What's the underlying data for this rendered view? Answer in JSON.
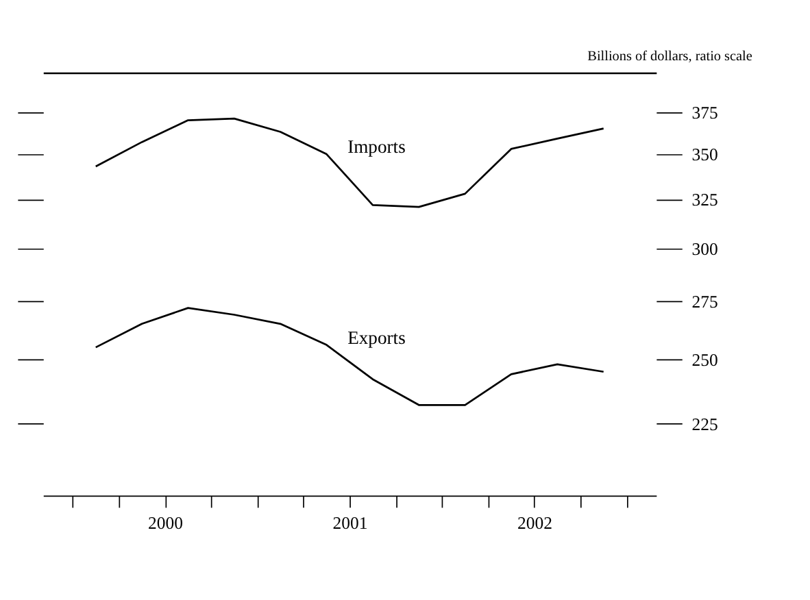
{
  "chart_data": {
    "type": "line",
    "ylabel": "Billions of dollars, ratio scale",
    "x": [
      2000.125,
      2000.375,
      2000.625,
      2000.875,
      2001.125,
      2001.375,
      2001.625,
      2001.875,
      2002.125,
      2002.375,
      2002.625,
      2002.875
    ],
    "series": [
      {
        "name": "Imports",
        "color": "#000000",
        "values": [
          343,
          357,
          370,
          371,
          363,
          350,
          322,
          321,
          328,
          353,
          359,
          365
        ]
      },
      {
        "name": "Exports",
        "color": "#000000",
        "values": [
          255,
          265,
          272,
          269,
          265,
          256,
          242,
          232,
          232,
          244,
          248,
          245
        ]
      }
    ],
    "log": true,
    "xlim": [
      1999.84,
      2003.16
    ],
    "xticks": [
      {
        "value": 2000,
        "label": null
      },
      {
        "value": 2000.25,
        "label": null
      },
      {
        "value": 2000.5,
        "label": "2000"
      },
      {
        "value": 2000.75,
        "label": null
      },
      {
        "value": 2001,
        "label": null
      },
      {
        "value": 2001.25,
        "label": null
      },
      {
        "value": 2001.5,
        "label": "2001"
      },
      {
        "value": 2001.75,
        "label": null
      },
      {
        "value": 2002,
        "label": null
      },
      {
        "value": 2002.25,
        "label": null
      },
      {
        "value": 2002.5,
        "label": "2002"
      },
      {
        "value": 2002.75,
        "label": null
      },
      {
        "value": 2003,
        "label": null
      }
    ],
    "ylim": [
      200,
      400
    ],
    "yticks": [
      225,
      250,
      275,
      300,
      325,
      350,
      375
    ],
    "grid": false,
    "legend": false,
    "marker": "none",
    "line_style": "solid"
  }
}
